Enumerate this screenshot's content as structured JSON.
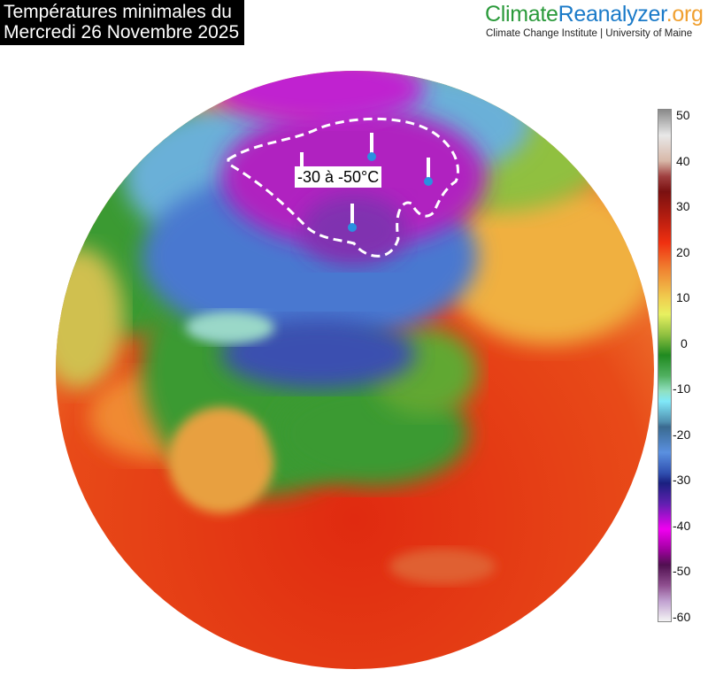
{
  "title": {
    "line1": "Températures minimales du",
    "line2": "Mercredi 26 Novembre 2025"
  },
  "logo": {
    "part1": "Climate",
    "part2": "Reanalyzer",
    "part3": ".org",
    "subtitle": "Climate Change Institute | University of Maine"
  },
  "colorbar": {
    "unit": "°C",
    "range": [
      -60,
      50
    ],
    "ticks": [
      "50",
      "40",
      "30",
      "20",
      "10",
      "0",
      "-10",
      "-20",
      "-30",
      "-40",
      "-50",
      "-60"
    ]
  },
  "annotation": {
    "label": "-30 à -50°C",
    "icon": "thermometer-icon",
    "count": 4
  },
  "colors": {
    "hot": "#e83010",
    "warm": "#f0a030",
    "mild": "#3a9a30",
    "cold": "#4a78d0",
    "very_cold": "#c020c0"
  }
}
